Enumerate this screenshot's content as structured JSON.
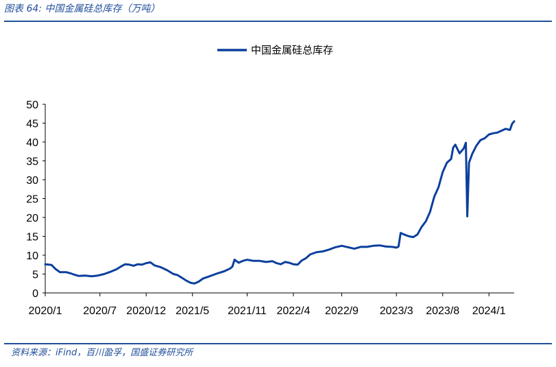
{
  "figure": {
    "title": "图表 64:  中国金属硅总库存（万吨）",
    "source": "资料来源：iFind，百川盈孚，国盛证券研究所"
  },
  "colors": {
    "series": "#0b3f9e",
    "accent": "#1f4e9a"
  },
  "chart_data": {
    "type": "line",
    "title": "",
    "xlabel": "",
    "ylabel": "",
    "ylim": [
      0,
      50
    ],
    "yticks": [
      0,
      5,
      10,
      15,
      20,
      25,
      30,
      35,
      40,
      45,
      50
    ],
    "xlim": [
      0,
      223
    ],
    "xticks": [
      {
        "label": "2020/1",
        "index": 0
      },
      {
        "label": "2020/7",
        "index": 26
      },
      {
        "label": "2020/12",
        "index": 48
      },
      {
        "label": "2021/5",
        "index": 70
      },
      {
        "label": "2021/11",
        "index": 96
      },
      {
        "label": "2022/4",
        "index": 118
      },
      {
        "label": "2022/9",
        "index": 141
      },
      {
        "label": "2023/3",
        "index": 167
      },
      {
        "label": "2023/8",
        "index": 189
      },
      {
        "label": "2024/1",
        "index": 211
      }
    ],
    "grid": false,
    "legend_position": "top-center",
    "series": [
      {
        "name": "中国金属硅总库存",
        "points": [
          [
            0,
            7.6
          ],
          [
            3,
            7.4
          ],
          [
            5,
            6.3
          ],
          [
            7,
            5.5
          ],
          [
            10,
            5.5
          ],
          [
            12,
            5.2
          ],
          [
            14,
            4.8
          ],
          [
            16,
            4.5
          ],
          [
            19,
            4.6
          ],
          [
            22,
            4.4
          ],
          [
            25,
            4.6
          ],
          [
            28,
            5.0
          ],
          [
            31,
            5.6
          ],
          [
            34,
            6.3
          ],
          [
            36,
            7.0
          ],
          [
            38,
            7.6
          ],
          [
            40,
            7.5
          ],
          [
            42,
            7.2
          ],
          [
            44,
            7.6
          ],
          [
            46,
            7.5
          ],
          [
            48,
            7.9
          ],
          [
            50,
            8.1
          ],
          [
            52,
            7.3
          ],
          [
            55,
            6.8
          ],
          [
            58,
            6.0
          ],
          [
            61,
            5.0
          ],
          [
            63,
            4.7
          ],
          [
            65,
            4.0
          ],
          [
            67,
            3.3
          ],
          [
            69,
            2.7
          ],
          [
            71,
            2.5
          ],
          [
            73,
            3.0
          ],
          [
            75,
            3.8
          ],
          [
            77,
            4.2
          ],
          [
            80,
            4.8
          ],
          [
            82,
            5.2
          ],
          [
            85,
            5.7
          ],
          [
            88,
            6.5
          ],
          [
            89,
            7.0
          ],
          [
            90,
            8.8
          ],
          [
            92,
            8.0
          ],
          [
            94,
            8.5
          ],
          [
            96,
            8.8
          ],
          [
            99,
            8.5
          ],
          [
            102,
            8.5
          ],
          [
            105,
            8.2
          ],
          [
            108,
            8.4
          ],
          [
            110,
            7.9
          ],
          [
            112,
            7.6
          ],
          [
            114,
            8.2
          ],
          [
            116,
            8.0
          ],
          [
            118,
            7.6
          ],
          [
            120,
            7.5
          ],
          [
            122,
            8.6
          ],
          [
            124,
            9.2
          ],
          [
            126,
            10.2
          ],
          [
            129,
            10.8
          ],
          [
            132,
            11.0
          ],
          [
            135,
            11.5
          ],
          [
            138,
            12.1
          ],
          [
            141,
            12.5
          ],
          [
            144,
            12.1
          ],
          [
            147,
            11.7
          ],
          [
            150,
            12.2
          ],
          [
            153,
            12.2
          ],
          [
            156,
            12.5
          ],
          [
            159,
            12.6
          ],
          [
            162,
            12.3
          ],
          [
            165,
            12.2
          ],
          [
            167,
            12.0
          ],
          [
            168,
            12.3
          ],
          [
            169,
            15.9
          ],
          [
            171,
            15.4
          ],
          [
            173,
            15.0
          ],
          [
            175,
            14.8
          ],
          [
            177,
            15.5
          ],
          [
            179,
            17.5
          ],
          [
            181,
            19.0
          ],
          [
            183,
            21.5
          ],
          [
            185,
            25.5
          ],
          [
            187,
            28.0
          ],
          [
            189,
            32.0
          ],
          [
            191,
            34.5
          ],
          [
            193,
            35.5
          ],
          [
            194,
            38.5
          ],
          [
            195,
            39.3
          ],
          [
            197,
            37.0
          ],
          [
            199,
            38.3
          ],
          [
            200,
            39.8
          ],
          [
            200.7,
            20.3
          ],
          [
            201.5,
            34.5
          ],
          [
            203,
            36.8
          ],
          [
            205,
            39.0
          ],
          [
            207,
            40.5
          ],
          [
            209,
            41.0
          ],
          [
            211,
            42.0
          ],
          [
            213,
            42.3
          ],
          [
            215,
            42.5
          ],
          [
            217,
            43.0
          ],
          [
            219,
            43.5
          ],
          [
            221,
            43.2
          ],
          [
            222,
            44.8
          ],
          [
            223,
            45.5
          ]
        ]
      }
    ]
  }
}
